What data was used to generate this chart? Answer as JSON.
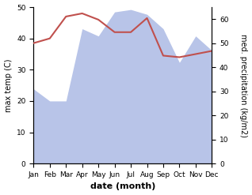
{
  "months": [
    "Jan",
    "Feb",
    "Mar",
    "Apr",
    "May",
    "Jun",
    "Jul",
    "Aug",
    "Sep",
    "Oct",
    "Nov",
    "Dec"
  ],
  "temp": [
    38.5,
    40.0,
    47.0,
    48.0,
    46.0,
    42.0,
    42.0,
    46.5,
    34.5,
    34.0,
    35.0,
    36.0
  ],
  "precip": [
    31,
    26,
    26,
    56,
    53,
    63,
    64,
    62,
    56,
    42,
    53,
    47
  ],
  "temp_color": "#c0504d",
  "precip_fill_color": "#b8c4e8",
  "bg_color": "#ffffff",
  "xlabel": "date (month)",
  "ylabel_left": "max temp (C)",
  "ylabel_right": "med. precipitation (kg/m2)",
  "ylim_left": [
    0,
    50
  ],
  "ylim_right": [
    0,
    65
  ],
  "yticks_left": [
    0,
    10,
    20,
    30,
    40,
    50
  ],
  "yticks_right": [
    0,
    10,
    20,
    30,
    40,
    50,
    60
  ],
  "temp_linewidth": 1.5,
  "xlabel_fontsize": 8,
  "ylabel_fontsize": 7,
  "tick_fontsize": 6.5
}
